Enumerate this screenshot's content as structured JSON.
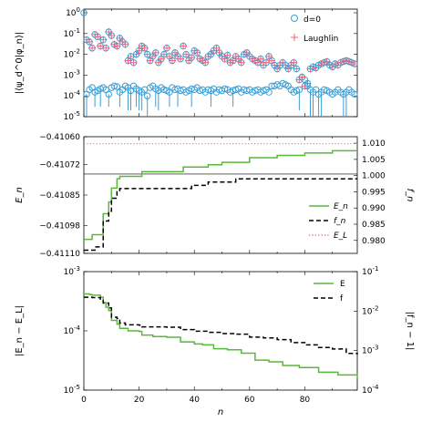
{
  "chart_data": [
    {
      "type": "scatter",
      "panel": "top",
      "ylabel": "|⟨ψ_d^0|φ_n⟩|",
      "ylog": true,
      "xlim": [
        0,
        99
      ],
      "ylim": [
        1e-05,
        1.5
      ],
      "y_ticks": [
        {
          "v": 1,
          "t": "10",
          "e": "0"
        },
        {
          "v": 0.1,
          "t": "10",
          "e": "-1"
        },
        {
          "v": 0.01,
          "t": "10",
          "e": "-2"
        },
        {
          "v": 0.001,
          "t": "10",
          "e": "-3"
        },
        {
          "v": 0.0001,
          "t": "10",
          "e": "-4"
        },
        {
          "v": 1e-05,
          "t": "10",
          "e": "-5"
        }
      ],
      "legend": [
        {
          "label": "d=0",
          "marker": "circle",
          "color": "#3a9fd8"
        },
        {
          "label": "Laughlin",
          "marker": "plus",
          "color": "#f0657a"
        }
      ],
      "series": [
        {
          "name": "d=0",
          "color": "#3a9fd8",
          "y": [
            1.0,
            0.00012,
            0.0002,
            0.00025,
            0.00015,
            0.00018,
            0.00022,
            0.00025,
            0.0002,
            0.00012,
            0.00025,
            0.0003,
            0.00028,
            0.00015,
            0.0002,
            0.0003,
            0.00025,
            0.00018,
            0.0003,
            0.00022,
            0.00018,
            0.00015,
            0.0002,
            0.0001,
            0.00025,
            0.0003,
            0.00022,
            0.00018,
            0.00025,
            0.0002,
            0.00018,
            0.00015,
            0.00025,
            0.0002,
            0.00022,
            0.00018,
            0.0002,
            0.00015,
            0.00018,
            0.00022,
            0.0002,
            0.00025,
            0.00018,
            0.0002,
            0.00015,
            0.0002,
            0.00018,
            0.00022,
            0.00015,
            0.0002,
            0.00018,
            0.00022,
            0.0002,
            0.00015,
            0.00018,
            0.0002,
            0.00022,
            0.00015,
            0.0002,
            0.00018,
            0.0002,
            0.00015,
            0.00018,
            0.0002,
            0.00015,
            0.00018,
            0.0002,
            0.00015,
            0.0003,
            0.0003,
            0.00035,
            0.0003,
            0.0004,
            0.00035,
            0.0003,
            0.0002,
            0.00015,
            0.00018,
            0.0002,
            0.0008,
            0.0006,
            0.0003,
            0.0002,
            0.00015,
            0.0002,
            0.00012,
            0.00015,
            0.0002,
            0.00018,
            0.00015,
            0.00012,
            0.00015,
            0.0002,
            0.00015,
            0.00012,
            0.00015,
            0.0002,
            0.00015,
            0.00012
          ],
          "error_lower": [
            null,
            1e-05,
            null,
            null,
            3e-05,
            null,
            3e-05,
            null,
            null,
            3e-05,
            null,
            null,
            null,
            3e-05,
            null,
            null,
            2e-05,
            2e-05,
            null,
            3e-05,
            2e-05,
            2e-05,
            null,
            1e-05,
            null,
            null,
            3e-05,
            2e-05,
            null,
            null,
            null,
            3e-05,
            null,
            null,
            3e-05,
            null,
            null,
            null,
            null,
            3e-05,
            null,
            null,
            null,
            null,
            null,
            null,
            3e-05,
            null,
            null,
            null,
            null,
            null,
            null,
            null,
            3e-05,
            null,
            null,
            null,
            null,
            null,
            null,
            null,
            null,
            null,
            null,
            null,
            null,
            null,
            null,
            null,
            null,
            null,
            null,
            null,
            null,
            null,
            null,
            null,
            2e-05,
            null,
            null,
            null,
            1e-05,
            1e-05,
            null,
            1e-05,
            1e-05,
            null,
            null,
            null,
            null,
            null,
            null,
            null,
            1e-05,
            1e-05,
            null,
            null,
            null
          ]
        },
        {
          "name": "Laughlin",
          "color": "#f0657a",
          "y": [
            null,
            0.05,
            0.04,
            0.02,
            0.09,
            0.07,
            0.025,
            0.05,
            0.02,
            0.12,
            0.08,
            0.03,
            0.025,
            0.06,
            0.04,
            0.03,
            0.005,
            0.008,
            0.004,
            0.01,
            0.015,
            0.025,
            0.02,
            0.01,
            0.005,
            0.008,
            0.012,
            0.004,
            0.006,
            0.01,
            0.02,
            0.008,
            0.005,
            0.012,
            0.008,
            0.006,
            0.025,
            0.01,
            0.005,
            0.007,
            0.015,
            0.012,
            0.006,
            0.005,
            0.004,
            0.008,
            0.01,
            0.015,
            0.02,
            0.012,
            0.008,
            0.006,
            0.009,
            0.004,
            0.005,
            0.008,
            0.006,
            0.004,
            0.01,
            0.012,
            0.008,
            0.006,
            0.005,
            0.004,
            0.006,
            0.003,
            0.004,
            0.008,
            0.005,
            0.003,
            0.002,
            0.003,
            0.004,
            0.003,
            0.002,
            0.003,
            0.004,
            0.002,
            0.0006,
            0.0008,
            0.0003,
            0.0004,
            0.002,
            0.0025,
            0.0022,
            0.003,
            0.0035,
            0.004,
            0.0045,
            0.003,
            0.0025,
            0.0035,
            0.003,
            0.004,
            0.0045,
            0.005,
            0.0045,
            0.004,
            0.0035
          ]
        }
      ]
    },
    {
      "type": "line",
      "panel": "middle",
      "ylabel": "E_n",
      "y2label": "f_n",
      "xlim": [
        0,
        99
      ],
      "ylim": [
        -0.4111,
        -0.4106
      ],
      "y2lim": [
        0.976,
        1.012
      ],
      "y_ticks": [
        "−0.41060",
        "−0.41072",
        "−0.41085",
        "−0.41098",
        "−0.41110"
      ],
      "y_tick_values": [
        -0.4106,
        -0.41072,
        -0.41085,
        -0.41098,
        -0.4111
      ],
      "y2_ticks": [
        "1.010",
        "1.005",
        "1.000",
        "0.995",
        "0.990",
        "0.985",
        "0.980"
      ],
      "y2_tick_values": [
        1.01,
        1.005,
        1.0,
        0.995,
        0.99,
        0.985,
        0.98
      ],
      "reference_line": -0.41076,
      "legend": [
        {
          "label": "E_n",
          "style": "solid",
          "color": "#5ab83a"
        },
        {
          "label": "f_n",
          "style": "dashed",
          "color": "#000000"
        },
        {
          "label": "E_L",
          "style": "dotted",
          "color": "#e8707a"
        }
      ],
      "series": [
        {
          "name": "E_n",
          "color": "#5ab83a",
          "axis": "left",
          "steps": [
            [
              0,
              -0.41104
            ],
            [
              2,
              -0.41104
            ],
            [
              3,
              -0.41102
            ],
            [
              6,
              -0.41102
            ],
            [
              7,
              -0.41093
            ],
            [
              9,
              -0.41088
            ],
            [
              10,
              -0.41082
            ],
            [
              11,
              -0.41082
            ],
            [
              12,
              -0.41078
            ],
            [
              13,
              -0.41077
            ],
            [
              20,
              -0.41077
            ],
            [
              21,
              -0.41075
            ],
            [
              35,
              -0.41075
            ],
            [
              36,
              -0.41073
            ],
            [
              42,
              -0.41073
            ],
            [
              45,
              -0.41072
            ],
            [
              50,
              -0.41071
            ],
            [
              60,
              -0.41069
            ],
            [
              70,
              -0.41068
            ],
            [
              80,
              -0.41067
            ],
            [
              90,
              -0.41066
            ],
            [
              99,
              -0.41066
            ]
          ]
        },
        {
          "name": "f_n",
          "color": "#000000",
          "axis": "right",
          "steps": [
            [
              0,
              0.977
            ],
            [
              3,
              0.977
            ],
            [
              4,
              0.978
            ],
            [
              6,
              0.978
            ],
            [
              7,
              0.986
            ],
            [
              9,
              0.989
            ],
            [
              10,
              0.993
            ],
            [
              11,
              0.993
            ],
            [
              12,
              0.995
            ],
            [
              13,
              0.996
            ],
            [
              38,
              0.996
            ],
            [
              39,
              0.997
            ],
            [
              42,
              0.997
            ],
            [
              45,
              0.998
            ],
            [
              50,
              0.998
            ],
            [
              55,
              0.999
            ],
            [
              99,
              0.999
            ]
          ]
        },
        {
          "name": "E_L",
          "color": "#e8707a",
          "axis": "left",
          "constant": -0.41063
        }
      ]
    },
    {
      "type": "line",
      "panel": "bottom",
      "ylabel": "|E_n − E_L|",
      "y2label": "|f_n − 1|",
      "xlabel": "n",
      "xlim": [
        0,
        99
      ],
      "x_ticks": [
        0,
        20,
        40,
        60,
        80
      ],
      "ylog": true,
      "ylim": [
        1e-05,
        0.001
      ],
      "y2lim": [
        0.0001,
        0.1
      ],
      "y_ticks": [
        {
          "v": 0.001,
          "t": "10",
          "e": "-3"
        },
        {
          "v": 0.0001,
          "t": "10",
          "e": "-4"
        },
        {
          "v": 1e-05,
          "t": "10",
          "e": "-5"
        }
      ],
      "y2_ticks": [
        {
          "v": 0.1,
          "t": "10",
          "e": "-1"
        },
        {
          "v": 0.01,
          "t": "10",
          "e": "-2"
        },
        {
          "v": 0.001,
          "t": "10",
          "e": "-3"
        },
        {
          "v": 0.0001,
          "t": "10",
          "e": "-4"
        }
      ],
      "legend": [
        {
          "label": "E",
          "style": "solid",
          "color": "#5ab83a"
        },
        {
          "label": "f",
          "style": "dashed",
          "color": "#000000"
        }
      ],
      "series": [
        {
          "name": "E",
          "color": "#5ab83a",
          "axis": "left",
          "steps": [
            [
              0,
              0.00042
            ],
            [
              2,
              0.00041
            ],
            [
              3,
              0.0004
            ],
            [
              6,
              0.00037
            ],
            [
              7,
              0.0003
            ],
            [
              8,
              0.00025
            ],
            [
              9,
              0.00022
            ],
            [
              10,
              0.00015
            ],
            [
              12,
              0.00013
            ],
            [
              13,
              0.00011
            ],
            [
              16,
              0.0001
            ],
            [
              20,
              9.8e-05
            ],
            [
              21,
              8.5e-05
            ],
            [
              25,
              8e-05
            ],
            [
              30,
              7.8e-05
            ],
            [
              35,
              6.5e-05
            ],
            [
              40,
              6e-05
            ],
            [
              43,
              5.8e-05
            ],
            [
              47,
              5e-05
            ],
            [
              52,
              4.8e-05
            ],
            [
              57,
              4.2e-05
            ],
            [
              62,
              3.2e-05
            ],
            [
              67,
              3e-05
            ],
            [
              72,
              2.6e-05
            ],
            [
              78,
              2.4e-05
            ],
            [
              85,
              2e-05
            ],
            [
              92,
              1.8e-05
            ],
            [
              99,
              1.6e-05
            ]
          ]
        },
        {
          "name": "f",
          "color": "#000000",
          "axis": "right",
          "steps": [
            [
              0,
              0.0225
            ],
            [
              3,
              0.022
            ],
            [
              6,
              0.02
            ],
            [
              7,
              0.016
            ],
            [
              9,
              0.012
            ],
            [
              10,
              0.007
            ],
            [
              12,
              0.0065
            ],
            [
              13,
              0.005
            ],
            [
              15,
              0.0045
            ],
            [
              20,
              0.0044
            ],
            [
              21,
              0.004
            ],
            [
              30,
              0.0039
            ],
            [
              35,
              0.0034
            ],
            [
              40,
              0.0031
            ],
            [
              45,
              0.0029
            ],
            [
              50,
              0.0027
            ],
            [
              55,
              0.0026
            ],
            [
              60,
              0.0022
            ],
            [
              65,
              0.0021
            ],
            [
              70,
              0.0019
            ],
            [
              75,
              0.0016
            ],
            [
              80,
              0.0014
            ],
            [
              85,
              0.0012
            ],
            [
              90,
              0.0011
            ],
            [
              95,
              0.00085
            ],
            [
              99,
              0.0008
            ]
          ]
        }
      ]
    }
  ]
}
